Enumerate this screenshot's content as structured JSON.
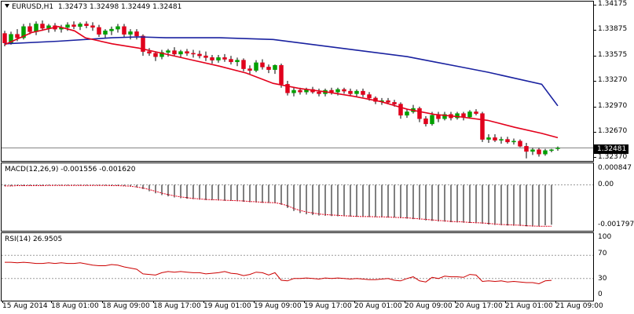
{
  "chart_title": {
    "symbol": "EURUSD,H1",
    "open": "1.32473",
    "high": "1.32498",
    "low": "1.32449",
    "close": "1.32481"
  },
  "colors": {
    "bull_candle": "#00a000",
    "bear_candle": "#e0001c",
    "ma_fast": "#e3001b",
    "ma_slow": "#1a22a0",
    "macd_hist": "#000000",
    "macd_signal": "#e3001b",
    "rsi_line": "#cc0000",
    "grid_dotted": "#9a9a9a"
  },
  "current_price": "1.32481",
  "price_axis": [
    "1.34175",
    "1.33875",
    "1.33575",
    "1.33270",
    "1.32970",
    "1.32670",
    "1.32370"
  ],
  "macd": {
    "label": "MACD(12,26,9) -0.001556 -0.001620",
    "axis": [
      "0.000847",
      "0.00",
      "-0.001797"
    ]
  },
  "rsi": {
    "label": "RSI(14) 26.9505",
    "axis": [
      "100",
      "70",
      "30",
      "0"
    ]
  },
  "time_axis": [
    "15 Aug 2014",
    "18 Aug 01:00",
    "18 Aug 09:00",
    "18 Aug 17:00",
    "19 Aug 01:00",
    "19 Aug 09:00",
    "19 Aug 17:00",
    "20 Aug 01:00",
    "20 Aug 09:00",
    "20 Aug 17:00",
    "21 Aug 01:00",
    "21 Aug 09:00"
  ],
  "chart_data": {
    "type": "candlestick",
    "symbol": "EURUSD",
    "timeframe": "H1",
    "ylim": [
      1.3233,
      1.3418
    ],
    "candles": [
      [
        1.3381,
        1.3384,
        1.3366,
        1.337
      ],
      [
        1.337,
        1.3383,
        1.3368,
        1.338
      ],
      [
        1.338,
        1.3386,
        1.3372,
        1.3376
      ],
      [
        1.3376,
        1.3392,
        1.3374,
        1.3389
      ],
      [
        1.3389,
        1.3393,
        1.338,
        1.3383
      ],
      [
        1.3383,
        1.3395,
        1.3379,
        1.3392
      ],
      [
        1.3392,
        1.3396,
        1.3384,
        1.3387
      ],
      [
        1.3387,
        1.3392,
        1.3382,
        1.339
      ],
      [
        1.339,
        1.3393,
        1.3383,
        1.3386
      ],
      [
        1.3386,
        1.3391,
        1.3382,
        1.3388
      ],
      [
        1.3388,
        1.3394,
        1.3384,
        1.3391
      ],
      [
        1.3391,
        1.3395,
        1.3386,
        1.3389
      ],
      [
        1.3389,
        1.3394,
        1.3385,
        1.3392
      ],
      [
        1.3392,
        1.3395,
        1.3387,
        1.339
      ],
      [
        1.339,
        1.3394,
        1.3384,
        1.3388
      ],
      [
        1.3388,
        1.3391,
        1.3377,
        1.338
      ],
      [
        1.338,
        1.3386,
        1.3376,
        1.3384
      ],
      [
        1.3384,
        1.3389,
        1.3379,
        1.3386
      ],
      [
        1.3386,
        1.3392,
        1.3382,
        1.3389
      ],
      [
        1.3389,
        1.3392,
        1.3377,
        1.338
      ],
      [
        1.338,
        1.3386,
        1.3374,
        1.3383
      ],
      [
        1.3383,
        1.3386,
        1.3374,
        1.3378
      ],
      [
        1.3378,
        1.338,
        1.3355,
        1.336
      ],
      [
        1.336,
        1.3364,
        1.3355,
        1.3358
      ],
      [
        1.3358,
        1.336,
        1.3349,
        1.3354
      ],
      [
        1.3354,
        1.3362,
        1.3351,
        1.3359
      ],
      [
        1.3359,
        1.3363,
        1.3354,
        1.3361
      ],
      [
        1.3361,
        1.3365,
        1.3355,
        1.3357
      ],
      [
        1.3357,
        1.3362,
        1.3353,
        1.336
      ],
      [
        1.336,
        1.3363,
        1.3355,
        1.3358
      ],
      [
        1.3358,
        1.3362,
        1.3353,
        1.3357
      ],
      [
        1.3357,
        1.3361,
        1.3352,
        1.3355
      ],
      [
        1.3355,
        1.336,
        1.3349,
        1.3353
      ],
      [
        1.3353,
        1.3356,
        1.3346,
        1.335
      ],
      [
        1.335,
        1.3356,
        1.3347,
        1.3353
      ],
      [
        1.3353,
        1.3357,
        1.3348,
        1.3351
      ],
      [
        1.3351,
        1.3355,
        1.3345,
        1.3348
      ],
      [
        1.3348,
        1.3353,
        1.3343,
        1.335
      ],
      [
        1.335,
        1.3352,
        1.3337,
        1.334
      ],
      [
        1.334,
        1.3344,
        1.3334,
        1.3338
      ],
      [
        1.3338,
        1.335,
        1.3336,
        1.3347
      ],
      [
        1.3347,
        1.3351,
        1.3339,
        1.3342
      ],
      [
        1.3342,
        1.3345,
        1.3335,
        1.3339
      ],
      [
        1.3339,
        1.3345,
        1.3334,
        1.3344
      ],
      [
        1.3344,
        1.3346,
        1.3318,
        1.3322
      ],
      [
        1.3322,
        1.3326,
        1.3309,
        1.3312
      ],
      [
        1.3312,
        1.3318,
        1.3308,
        1.3315
      ],
      [
        1.3315,
        1.3318,
        1.331,
        1.3313
      ],
      [
        1.3313,
        1.3318,
        1.331,
        1.3316
      ],
      [
        1.3316,
        1.3319,
        1.3311,
        1.3313
      ],
      [
        1.3313,
        1.3317,
        1.3308,
        1.3311
      ],
      [
        1.3311,
        1.3317,
        1.3308,
        1.3315
      ],
      [
        1.3315,
        1.3318,
        1.331,
        1.3313
      ],
      [
        1.3313,
        1.3318,
        1.3309,
        1.3316
      ],
      [
        1.3316,
        1.3318,
        1.3311,
        1.3314
      ],
      [
        1.3314,
        1.3317,
        1.3309,
        1.3311
      ],
      [
        1.3311,
        1.3316,
        1.3308,
        1.3314
      ],
      [
        1.3314,
        1.3317,
        1.3307,
        1.331
      ],
      [
        1.331,
        1.3313,
        1.3303,
        1.3306
      ],
      [
        1.3306,
        1.3308,
        1.3299,
        1.3302
      ],
      [
        1.3302,
        1.3306,
        1.3298,
        1.3303
      ],
      [
        1.3303,
        1.3306,
        1.3299,
        1.3301
      ],
      [
        1.3301,
        1.3304,
        1.3296,
        1.3299
      ],
      [
        1.3299,
        1.3301,
        1.3282,
        1.3286
      ],
      [
        1.3286,
        1.3293,
        1.3283,
        1.329
      ],
      [
        1.329,
        1.3298,
        1.3288,
        1.3294
      ],
      [
        1.3294,
        1.3296,
        1.3278,
        1.3282
      ],
      [
        1.3282,
        1.3285,
        1.3273,
        1.3276
      ],
      [
        1.3276,
        1.329,
        1.3274,
        1.3286
      ],
      [
        1.3286,
        1.329,
        1.3278,
        1.3282
      ],
      [
        1.3282,
        1.329,
        1.328,
        1.3287
      ],
      [
        1.3287,
        1.329,
        1.328,
        1.3283
      ],
      [
        1.3283,
        1.329,
        1.3281,
        1.3288
      ],
      [
        1.3288,
        1.329,
        1.328,
        1.3284
      ],
      [
        1.3284,
        1.3292,
        1.3282,
        1.329
      ],
      [
        1.329,
        1.3293,
        1.3286,
        1.3288
      ],
      [
        1.3288,
        1.329,
        1.3255,
        1.3258
      ],
      [
        1.3258,
        1.3264,
        1.3254,
        1.326
      ],
      [
        1.326,
        1.3264,
        1.3255,
        1.3257
      ],
      [
        1.3257,
        1.3261,
        1.3253,
        1.3258
      ],
      [
        1.3258,
        1.3261,
        1.3253,
        1.3255
      ],
      [
        1.3255,
        1.3259,
        1.3252,
        1.3256
      ],
      [
        1.3256,
        1.3258,
        1.3249,
        1.325
      ],
      [
        1.325,
        1.3254,
        1.3236,
        1.3244
      ],
      [
        1.3244,
        1.3248,
        1.324,
        1.3246
      ],
      [
        1.3246,
        1.3248,
        1.3238,
        1.3241
      ],
      [
        1.3241,
        1.3247,
        1.3239,
        1.3245
      ],
      [
        1.3245,
        1.3247,
        1.3243,
        1.3246
      ],
      [
        1.32473,
        1.32498,
        1.32449,
        1.32481
      ]
    ],
    "ma_fast": [
      [
        0,
        1.3368
      ],
      [
        10,
        1.3382
      ],
      [
        20,
        1.3389
      ],
      [
        26,
        1.3384
      ],
      [
        30,
        1.3376
      ],
      [
        40,
        1.3369
      ],
      [
        50,
        1.3364
      ],
      [
        60,
        1.3357
      ],
      [
        70,
        1.335
      ],
      [
        80,
        1.3343
      ],
      [
        90,
        1.3335
      ],
      [
        100,
        1.3323
      ],
      [
        110,
        1.3317
      ],
      [
        120,
        1.3313
      ],
      [
        130,
        1.3308
      ],
      [
        140,
        1.3302
      ],
      [
        150,
        1.3293
      ],
      [
        160,
        1.3287
      ],
      [
        170,
        1.3284
      ],
      [
        180,
        1.328
      ],
      [
        190,
        1.3272
      ],
      [
        200,
        1.3265
      ],
      [
        206,
        1.326
      ]
    ],
    "ma_slow": [
      [
        0,
        1.3369
      ],
      [
        20,
        1.3372
      ],
      [
        40,
        1.3376
      ],
      [
        50,
        1.3377
      ],
      [
        60,
        1.3376
      ],
      [
        80,
        1.3376
      ],
      [
        100,
        1.3374
      ],
      [
        110,
        1.337
      ],
      [
        130,
        1.3362
      ],
      [
        150,
        1.3354
      ],
      [
        160,
        1.3348
      ],
      [
        170,
        1.3342
      ],
      [
        180,
        1.3336
      ],
      [
        190,
        1.3329
      ],
      [
        200,
        1.3322
      ],
      [
        206,
        1.3297
      ]
    ],
    "macd_hist": [
      -5e-05,
      -5e-05,
      -4e-05,
      -4e-05,
      -3e-05,
      -3e-05,
      -3e-05,
      -2e-05,
      -2e-05,
      -2e-05,
      -2e-05,
      -2e-05,
      -2e-05,
      -2e-05,
      -2e-05,
      -2e-05,
      -3e-05,
      -3e-05,
      -3e-05,
      -4e-05,
      -6e-05,
      -0.0001,
      -0.00016,
      -0.00025,
      -0.00033,
      -0.0004,
      -0.00045,
      -0.00049,
      -0.00052,
      -0.00054,
      -0.00056,
      -0.00058,
      -0.00059,
      -0.0006,
      -0.00061,
      -0.00062,
      -0.00063,
      -0.00064,
      -0.00066,
      -0.00068,
      -0.00069,
      -0.0007,
      -0.00071,
      -0.00072,
      -0.00078,
      -0.0009,
      -0.00102,
      -0.0011,
      -0.00115,
      -0.00118,
      -0.0012,
      -0.00121,
      -0.00122,
      -0.00123,
      -0.00123,
      -0.00124,
      -0.00125,
      -0.00125,
      -0.00126,
      -0.00126,
      -0.00127,
      -0.00128,
      -0.00128,
      -0.0013,
      -0.00132,
      -0.00134,
      -0.00136,
      -0.00139,
      -0.00141,
      -0.00143,
      -0.00144,
      -0.00146,
      -0.00147,
      -0.00148,
      -0.00149,
      -0.0015,
      -0.00152,
      -0.00155,
      -0.00157,
      -0.00158,
      -0.00159,
      -0.0016,
      -0.00161,
      -0.00162,
      -0.00163,
      -0.00163,
      -0.00158,
      -0.00156
    ],
    "macd_signal": [
      -4e-05,
      -4e-05,
      -3e-05,
      -3e-05,
      -3e-05,
      -3e-05,
      -3e-05,
      -2e-05,
      -2e-05,
      -2e-05,
      -2e-05,
      -2e-05,
      -2e-05,
      -2e-05,
      -2e-05,
      -2e-05,
      -2e-05,
      -3e-05,
      -3e-05,
      -4e-05,
      -5e-05,
      -8e-05,
      -0.00012,
      -0.00018,
      -0.00025,
      -0.00032,
      -0.00038,
      -0.00043,
      -0.00047,
      -0.0005,
      -0.00053,
      -0.00055,
      -0.00057,
      -0.00058,
      -0.00059,
      -0.0006,
      -0.00061,
      -0.00062,
      -0.00063,
      -0.00065,
      -0.00066,
      -0.00068,
      -0.00069,
      -0.0007,
      -0.00074,
      -0.00082,
      -0.00092,
      -0.001,
      -0.00106,
      -0.0011,
      -0.00114,
      -0.00116,
      -0.00118,
      -0.00119,
      -0.00121,
      -0.00122,
      -0.00123,
      -0.00124,
      -0.00124,
      -0.00125,
      -0.00125,
      -0.00126,
      -0.00127,
      -0.00128,
      -0.00129,
      -0.00131,
      -0.00133,
      -0.00135,
      -0.00137,
      -0.00139,
      -0.00141,
      -0.00143,
      -0.00144,
      -0.00145,
      -0.00147,
      -0.00148,
      -0.00149,
      -0.00151,
      -0.00153,
      -0.00155,
      -0.00156,
      -0.00157,
      -0.00158,
      -0.0016,
      -0.00161,
      -0.00162,
      -0.00162,
      -0.00162
    ],
    "rsi": [
      58,
      58,
      57,
      58,
      57,
      56,
      56,
      57,
      56,
      57,
      56,
      56,
      57,
      55,
      53,
      52,
      52,
      54,
      53,
      50,
      48,
      46,
      38,
      37,
      36,
      40,
      42,
      41,
      42,
      41,
      40,
      40,
      38,
      39,
      40,
      42,
      39,
      38,
      35,
      37,
      41,
      40,
      36,
      40,
      27,
      26,
      30,
      30,
      31,
      30,
      29,
      31,
      30,
      31,
      30,
      29,
      30,
      29,
      28,
      28,
      29,
      30,
      27,
      26,
      30,
      33,
      26,
      24,
      32,
      30,
      34,
      33,
      33,
      32,
      37,
      36,
      25,
      26,
      25,
      26,
      24,
      25,
      24,
      23,
      23,
      21,
      26,
      26.95
    ]
  }
}
